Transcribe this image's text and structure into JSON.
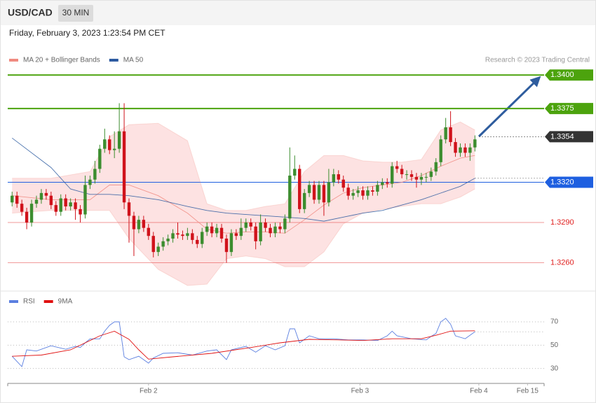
{
  "header": {
    "symbol": "USD/CAD",
    "timeframe": "30 MIN",
    "datetime": "Friday, February 3, 2023 1:23:54 PM CET",
    "credit": "Research © 2023 Trading Central"
  },
  "chart_data": [
    {
      "type": "candlestick",
      "xlim": [
        -0.9,
        109.2
      ],
      "ylim": [
        1.3242,
        1.3409
      ],
      "up_color": "#3c8d2f",
      "down_color": "#d0121b",
      "candles": {
        "x": [
          0,
          1,
          2,
          3,
          4,
          5,
          6,
          7,
          8,
          9,
          10,
          11,
          12,
          13,
          14,
          15,
          16,
          17,
          18,
          19,
          20,
          21,
          22,
          23,
          24,
          25,
          26,
          27,
          28,
          29,
          30,
          31,
          32,
          33,
          34,
          35,
          36,
          37,
          38,
          39,
          40,
          41,
          42,
          43,
          44,
          45,
          46,
          47,
          48,
          49,
          50,
          51,
          52,
          53,
          54,
          55,
          56,
          57,
          58,
          59,
          60,
          61,
          62,
          63,
          64,
          65,
          66,
          67,
          68,
          69,
          70,
          71,
          72,
          73,
          74,
          75,
          76,
          77,
          78,
          79,
          80,
          81,
          82,
          83,
          84,
          85,
          86,
          87,
          88,
          89,
          90,
          91,
          92,
          93,
          94,
          95
        ],
        "open": [
          1.3305,
          1.331,
          1.3304,
          1.3298,
          1.329,
          1.3304,
          1.3307,
          1.3312,
          1.331,
          1.3303,
          1.3298,
          1.3308,
          1.3302,
          1.3305,
          1.33,
          1.3296,
          1.3318,
          1.3322,
          1.333,
          1.3345,
          1.3352,
          1.3344,
          1.3345,
          1.3358,
          1.3305,
          1.3295,
          1.3285,
          1.3292,
          1.3286,
          1.328,
          1.3268,
          1.3272,
          1.3276,
          1.3278,
          1.3282,
          1.3281,
          1.328,
          1.3282,
          1.3277,
          1.3274,
          1.3283,
          1.3287,
          1.3282,
          1.3286,
          1.3278,
          1.3268,
          1.3282,
          1.328,
          1.3286,
          1.329,
          1.3287,
          1.3276,
          1.329,
          1.3286,
          1.3282,
          1.3287,
          1.3285,
          1.3293,
          1.3325,
          1.333,
          1.33,
          1.3312,
          1.3318,
          1.3307,
          1.3318,
          1.3305,
          1.332,
          1.3326,
          1.3322,
          1.3316,
          1.331,
          1.3312,
          1.3314,
          1.331,
          1.3314,
          1.3313,
          1.3318,
          1.332,
          1.3319,
          1.3332,
          1.333,
          1.3326,
          1.3326,
          1.3324,
          1.3322,
          1.3324,
          1.3324,
          1.3328,
          1.3335,
          1.3352,
          1.3361,
          1.335,
          1.3342,
          1.3346,
          1.3342,
          1.3346
        ],
        "high": [
          1.3313,
          1.3313,
          1.3307,
          1.3301,
          1.3307,
          1.331,
          1.3315,
          1.3315,
          1.3313,
          1.3306,
          1.3311,
          1.3311,
          1.3308,
          1.3308,
          1.3303,
          1.3325,
          1.3325,
          1.3336,
          1.3348,
          1.336,
          1.3355,
          1.3358,
          1.3379,
          1.3379,
          1.3308,
          1.3298,
          1.3295,
          1.3295,
          1.3289,
          1.3283,
          1.3275,
          1.3279,
          1.3281,
          1.3285,
          1.329,
          1.3284,
          1.3286,
          1.3285,
          1.328,
          1.3286,
          1.329,
          1.329,
          1.3289,
          1.3289,
          1.3281,
          1.3285,
          1.3285,
          1.3293,
          1.3293,
          1.3293,
          1.329,
          1.3296,
          1.3293,
          1.3289,
          1.329,
          1.329,
          1.3296,
          1.3346,
          1.334,
          1.3333,
          1.3315,
          1.3321,
          1.3321,
          1.3321,
          1.3321,
          1.333,
          1.333,
          1.3329,
          1.3325,
          1.3319,
          1.3315,
          1.3317,
          1.3317,
          1.3317,
          1.3317,
          1.3321,
          1.3323,
          1.3323,
          1.3335,
          1.3336,
          1.3333,
          1.3329,
          1.3329,
          1.3327,
          1.3327,
          1.3327,
          1.3331,
          1.3338,
          1.3355,
          1.3368,
          1.3373,
          1.3353,
          1.3349,
          1.3349,
          1.3349,
          1.3355
        ],
        "low": [
          1.3302,
          1.3301,
          1.3295,
          1.3285,
          1.3287,
          1.3301,
          1.3304,
          1.3307,
          1.33,
          1.3295,
          1.3295,
          1.3299,
          1.3299,
          1.3292,
          1.329,
          1.3293,
          1.3315,
          1.3319,
          1.3327,
          1.3342,
          1.3341,
          1.3338,
          1.3342,
          1.33,
          1.3275,
          1.3265,
          1.3282,
          1.3283,
          1.3277,
          1.3264,
          1.3265,
          1.3269,
          1.3273,
          1.3275,
          1.3278,
          1.3277,
          1.3277,
          1.3274,
          1.3271,
          1.3271,
          1.328,
          1.3279,
          1.3279,
          1.3275,
          1.326,
          1.3265,
          1.3277,
          1.3277,
          1.3283,
          1.3284,
          1.327,
          1.3273,
          1.3283,
          1.3279,
          1.3279,
          1.3282,
          1.3282,
          1.329,
          1.3322,
          1.3297,
          1.3297,
          1.3309,
          1.3304,
          1.3304,
          1.3295,
          1.3302,
          1.3317,
          1.3319,
          1.3313,
          1.3307,
          1.3307,
          1.3309,
          1.3307,
          1.3307,
          1.331,
          1.331,
          1.3315,
          1.3316,
          1.3316,
          1.3327,
          1.3323,
          1.3322,
          1.3321,
          1.3316,
          1.3318,
          1.332,
          1.3321,
          1.3325,
          1.3332,
          1.3349,
          1.3347,
          1.3339,
          1.3339,
          1.3339,
          1.3336,
          1.3343
        ],
        "close": [
          1.331,
          1.3304,
          1.3298,
          1.329,
          1.3304,
          1.3307,
          1.3312,
          1.331,
          1.3303,
          1.3298,
          1.3308,
          1.3302,
          1.3305,
          1.33,
          1.3296,
          1.3318,
          1.3322,
          1.333,
          1.3345,
          1.3352,
          1.3344,
          1.3345,
          1.3358,
          1.3305,
          1.3295,
          1.3285,
          1.3292,
          1.3286,
          1.328,
          1.3268,
          1.3272,
          1.3276,
          1.3278,
          1.3282,
          1.3281,
          1.328,
          1.3282,
          1.3277,
          1.3274,
          1.3283,
          1.3287,
          1.3282,
          1.3286,
          1.3278,
          1.3268,
          1.3282,
          1.328,
          1.3286,
          1.329,
          1.3287,
          1.3276,
          1.329,
          1.3286,
          1.3282,
          1.3287,
          1.3285,
          1.3293,
          1.3325,
          1.333,
          1.33,
          1.3312,
          1.3318,
          1.3307,
          1.3318,
          1.3305,
          1.332,
          1.3326,
          1.3322,
          1.3316,
          1.331,
          1.3312,
          1.3314,
          1.331,
          1.3314,
          1.3313,
          1.3318,
          1.332,
          1.3319,
          1.3332,
          1.333,
          1.3326,
          1.3326,
          1.3324,
          1.3322,
          1.3324,
          1.3324,
          1.3328,
          1.3335,
          1.3352,
          1.3361,
          1.335,
          1.3342,
          1.3346,
          1.3342,
          1.3346,
          1.3352
        ]
      },
      "series": [
        {
          "name": "MA 20 + Bollinger Bands",
          "color": "#f08a80",
          "band_color": "#fde2e2",
          "x": [
            0,
            8,
            16,
            20,
            24,
            30,
            36,
            40,
            44,
            48,
            52,
            56,
            60,
            64,
            68,
            72,
            76,
            80,
            84,
            88,
            92,
            95
          ],
          "values": [
            1.331,
            1.3307,
            1.3307,
            1.3318,
            1.3318,
            1.331,
            1.3297,
            1.3285,
            1.3282,
            1.3283,
            1.3283,
            1.3282,
            1.3292,
            1.3303,
            1.3312,
            1.3316,
            1.3318,
            1.332,
            1.3325,
            1.3332,
            1.3338,
            1.334
          ],
          "upper": [
            1.3323,
            1.3323,
            1.3328,
            1.3354,
            1.3363,
            1.3364,
            1.3351,
            1.3304,
            1.3299,
            1.3299,
            1.3302,
            1.3304,
            1.3328,
            1.334,
            1.334,
            1.3336,
            1.3335,
            1.3335,
            1.3337,
            1.3359,
            1.3365,
            1.3359
          ],
          "lower": [
            1.3297,
            1.3299,
            1.3299,
            1.3299,
            1.3278,
            1.3255,
            1.3243,
            1.3244,
            1.3263,
            1.3265,
            1.3263,
            1.3257,
            1.3257,
            1.3268,
            1.3289,
            1.3297,
            1.33,
            1.3302,
            1.3304,
            1.3304,
            1.3309,
            1.3315
          ]
        },
        {
          "name": "MA 50",
          "color": "#2c5aa0",
          "x": [
            0,
            8,
            12,
            16,
            20,
            24,
            30,
            36,
            40,
            44,
            48,
            52,
            56,
            60,
            64,
            68,
            72,
            76,
            80,
            84,
            88,
            92,
            95
          ],
          "values": [
            1.3353,
            1.3331,
            1.3315,
            1.3311,
            1.3311,
            1.331,
            1.3307,
            1.3302,
            1.3299,
            1.3297,
            1.3296,
            1.3295,
            1.3294,
            1.3293,
            1.3291,
            1.3294,
            1.3297,
            1.3299,
            1.3303,
            1.3307,
            1.3312,
            1.3317,
            1.3323
          ]
        }
      ],
      "levels": [
        {
          "value": 1.34,
          "label": "1.3400",
          "color": "#4ca30d",
          "label_box": true,
          "line": "thick"
        },
        {
          "value": 1.3375,
          "label": "1.3375",
          "color": "#4ca30d",
          "label_box": true,
          "line": "thick"
        },
        {
          "value": 1.3354,
          "label": "1.3354",
          "color": "#333333",
          "label_box": true,
          "line": "dotted"
        },
        {
          "value": 1.332,
          "label": "1.3320",
          "color": "#1e5fe0",
          "label_box": true,
          "line": "thin"
        },
        {
          "value": 1.329,
          "label": "1.3290",
          "color": "#e0201f",
          "label_box": false,
          "line": "thin"
        },
        {
          "value": 1.326,
          "label": "1.3260",
          "color": "#e0201f",
          "label_box": false,
          "line": "thin"
        }
      ]
    },
    {
      "type": "line",
      "xlim": [
        -0.9,
        109.2
      ],
      "ylim": [
        22,
        79
      ],
      "yticks": [
        30,
        50,
        70
      ],
      "grid": true,
      "xticks": [
        {
          "value": 28,
          "label": "Feb 2"
        },
        {
          "value": 71.4,
          "label": "Feb 3"
        },
        {
          "value": 95.8,
          "label": "Feb 4"
        },
        {
          "value": 105.8,
          "label": "Feb 15"
        }
      ],
      "series": [
        {
          "name": "RSI",
          "color": "#5b7fe0",
          "x": [
            0,
            2,
            3,
            5,
            8,
            11,
            13,
            14,
            15,
            16,
            18,
            19,
            20,
            21,
            22,
            23,
            24,
            26,
            28,
            29,
            31,
            34,
            37,
            40,
            42,
            44,
            45,
            48,
            50,
            52,
            54,
            56,
            57,
            58,
            59,
            61,
            63,
            66,
            69,
            72,
            75,
            77,
            78,
            79,
            82,
            85,
            86,
            87,
            88,
            89,
            90,
            91,
            93,
            95
          ],
          "values": [
            40.5,
            31.6,
            46,
            45,
            49.5,
            46.5,
            49,
            48,
            52,
            55.4,
            55.4,
            62,
            67,
            70,
            70,
            40,
            37.6,
            40.5,
            34.6,
            39,
            43,
            43.5,
            41.5,
            45,
            46,
            37.6,
            46,
            49,
            44,
            49.5,
            46,
            49.5,
            64,
            64,
            52,
            58,
            55.5,
            55.5,
            54.5,
            54.5,
            54,
            58,
            62,
            58,
            55.5,
            54.5,
            57.5,
            60,
            70,
            73,
            68,
            58,
            55.5,
            61.5
          ]
        },
        {
          "name": "9MA",
          "color": "#e01010",
          "x": [
            0,
            6,
            12,
            18,
            21,
            24,
            26,
            28,
            33,
            41,
            49,
            55,
            61,
            67,
            72,
            78,
            84,
            87,
            90,
            95
          ],
          "values": [
            40.5,
            41.5,
            46,
            58,
            62,
            55,
            46,
            38,
            40,
            43,
            48,
            52,
            55,
            54.5,
            54,
            55.5,
            55.5,
            58.5,
            62,
            62.3
          ]
        }
      ]
    }
  ]
}
